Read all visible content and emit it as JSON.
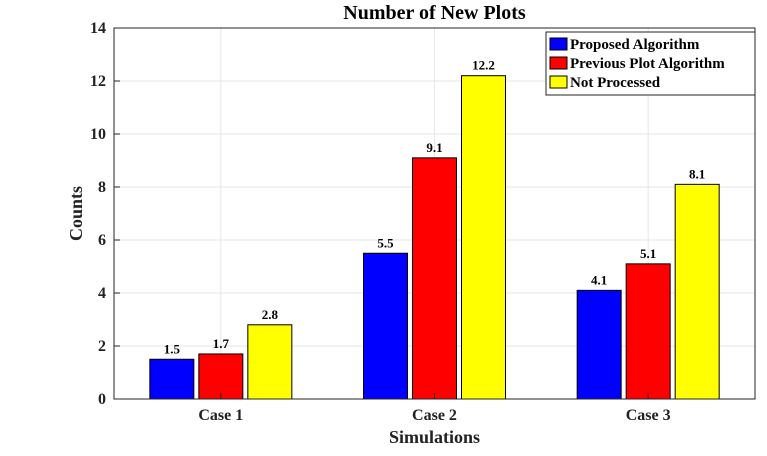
{
  "chart_data": {
    "type": "bar",
    "title": "Number of New Plots",
    "xlabel": "Simulations",
    "ylabel": "Counts",
    "categories": [
      "Case 1",
      "Case 2",
      "Case 3"
    ],
    "ylim": [
      0,
      14
    ],
    "yticks": [
      0,
      2,
      4,
      6,
      8,
      10,
      12,
      14
    ],
    "grid": true,
    "legend_position": "top-right",
    "series": [
      {
        "name": "Proposed Algorithm",
        "color": "#0000ff",
        "values": [
          1.5,
          5.5,
          4.1
        ],
        "labels": [
          "1.5",
          "5.5",
          "4.1"
        ]
      },
      {
        "name": "Previous Plot Algorithm",
        "color": "#ff0000",
        "values": [
          1.7,
          9.1,
          5.1
        ],
        "labels": [
          "1.7",
          "9.1",
          "5.1"
        ]
      },
      {
        "name": "Not Processed",
        "color": "#ffff00",
        "values": [
          2.8,
          12.2,
          8.1
        ],
        "labels": [
          "2.8",
          "12.2",
          "8.1"
        ]
      }
    ]
  }
}
